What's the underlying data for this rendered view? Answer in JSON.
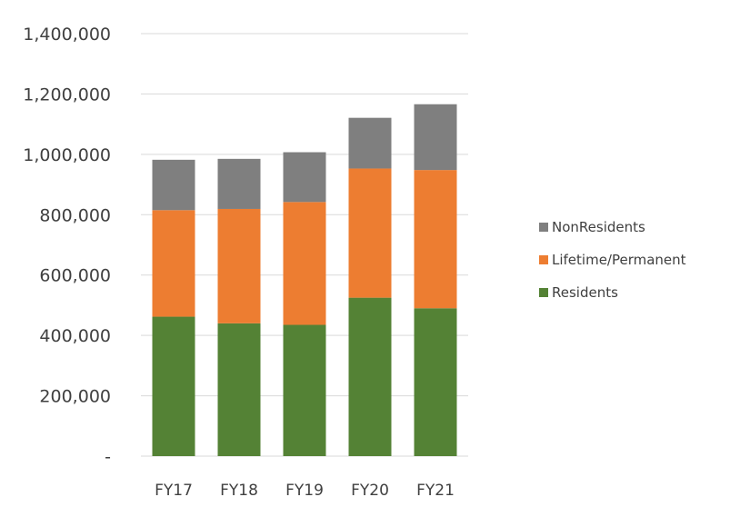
{
  "chart_data": {
    "type": "bar",
    "stacked": true,
    "title": "",
    "xlabel": "",
    "ylabel": "",
    "categories": [
      "FY17",
      "FY18",
      "FY19",
      "FY20",
      "FY21"
    ],
    "series": [
      {
        "name": "Residents",
        "color": "#548235",
        "values": [
          462000,
          440000,
          435000,
          525000,
          490000
        ]
      },
      {
        "name": "Lifetime/Permanent",
        "color": "#ed7d31",
        "values": [
          353000,
          379000,
          407000,
          428000,
          458000
        ]
      },
      {
        "name": "NonResidents",
        "color": "#7f7f7f",
        "values": [
          167000,
          166000,
          165000,
          168000,
          218000
        ]
      }
    ],
    "ylim": [
      0,
      1400000
    ],
    "yticks": [
      0,
      200000,
      400000,
      600000,
      800000,
      1000000,
      1200000,
      1400000
    ],
    "ytick_labels": [
      "-",
      "200,000",
      "400,000",
      "600,000",
      "800,000",
      "1,000,000",
      "1,200,000",
      "1,400,000"
    ],
    "grid": true,
    "gridline_color": "#d9d9d9",
    "legend": {
      "placement": "right",
      "items": [
        "NonResidents",
        "Lifetime/Permanent",
        "Residents"
      ]
    }
  }
}
